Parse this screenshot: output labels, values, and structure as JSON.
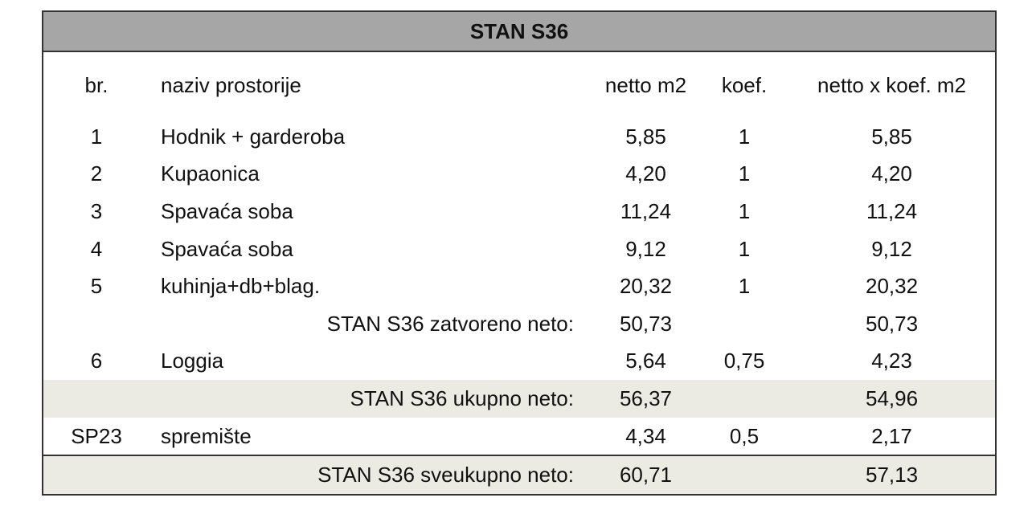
{
  "table": {
    "title": "STAN S36",
    "header": [
      "br.",
      "naziv prostorije",
      "netto m2",
      "koef.",
      "netto x koef. m2"
    ],
    "rows": [
      {
        "no": "1",
        "name": "Hodnik + garderoba",
        "netto": "5,85",
        "koef": "1",
        "result": "5,85"
      },
      {
        "no": "2",
        "name": "Kupaonica",
        "netto": "4,20",
        "koef": "1",
        "result": "4,20"
      },
      {
        "no": "3",
        "name": "Spavaća soba",
        "netto": "11,24",
        "koef": "1",
        "result": "11,24"
      },
      {
        "no": "4",
        "name": "Spavaća soba",
        "netto": "9,12",
        "koef": "1",
        "result": "9,12"
      },
      {
        "no": "5",
        "name": "kuhinja+db+blag.",
        "netto": "20,32",
        "koef": "1",
        "result": "20,32"
      },
      {
        "label": "STAN S36 zatvoreno neto:",
        "netto": "50,73",
        "result": "50,73"
      },
      {
        "no": "6",
        "name": "Loggia",
        "netto": "5,64",
        "koef": "0,75",
        "result": "4,23"
      },
      {
        "label": "STAN S36 ukupno neto:",
        "netto": "56,37",
        "result": "54,96"
      },
      {
        "no": "SP23",
        "name": "spremište",
        "netto": "4,34",
        "koef": "0,5",
        "result": "2,17"
      },
      {
        "label": "STAN S36 sveukupno neto:",
        "netto": "60,71",
        "result": "57,13"
      }
    ]
  }
}
